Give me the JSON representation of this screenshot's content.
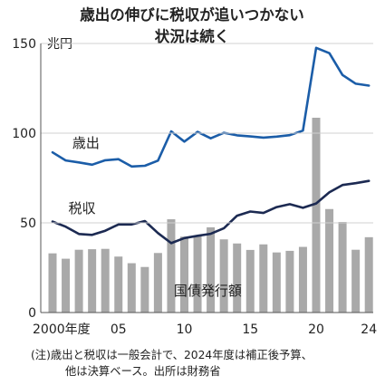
{
  "chart_data": {
    "type": "bar+line",
    "title_lines": [
      "歳出の伸びに税収が追いつかない",
      "状況は続く"
    ],
    "unit": "兆円",
    "y_ticks": [
      "150",
      "100",
      "50",
      "0"
    ],
    "y_tick_values": [
      150,
      100,
      50,
      0
    ],
    "ylim": [
      0,
      150
    ],
    "x_tick_labels": [
      "2000年度",
      "05",
      "10",
      "15",
      "20",
      "24"
    ],
    "x_tick_years": [
      2000,
      2005,
      2010,
      2015,
      2020,
      2024
    ],
    "years": [
      2000,
      2001,
      2002,
      2003,
      2004,
      2005,
      2006,
      2007,
      2008,
      2009,
      2010,
      2011,
      2012,
      2013,
      2014,
      2015,
      2016,
      2017,
      2018,
      2019,
      2020,
      2021,
      2022,
      2023,
      2024
    ],
    "series": [
      {
        "name": "歳出",
        "kind": "line",
        "color": "#1b5da8",
        "values": [
          89.3,
          84.8,
          83.7,
          82.4,
          84.9,
          85.5,
          81.4,
          81.8,
          84.7,
          101.0,
          95.3,
          100.7,
          97.1,
          100.2,
          98.8,
          98.2,
          97.5,
          98.1,
          98.9,
          101.4,
          147.6,
          144.6,
          132.4,
          127.6,
          126.5
        ]
      },
      {
        "name": "税収",
        "kind": "line",
        "color": "#1c2a52",
        "values": [
          50.7,
          47.9,
          43.8,
          43.3,
          45.6,
          49.1,
          49.1,
          51.0,
          44.3,
          38.7,
          41.5,
          42.8,
          43.9,
          47.0,
          54.0,
          56.3,
          55.5,
          58.8,
          60.4,
          58.4,
          60.8,
          67.0,
          71.1,
          72.1,
          73.4
        ]
      },
      {
        "name": "国債発行額",
        "kind": "bar",
        "color": "#a9a9a9",
        "values": [
          33.0,
          30.0,
          35.0,
          35.3,
          35.5,
          31.2,
          27.5,
          25.4,
          33.2,
          52.0,
          42.3,
          42.8,
          47.5,
          40.8,
          38.5,
          34.9,
          38.0,
          33.5,
          34.4,
          36.6,
          108.6,
          57.7,
          50.5,
          35.0,
          42.0
        ]
      }
    ],
    "notes": [
      "(注)歳出と税収は一般会計で、2024年度は補正後予算、",
      "他は決算ベース。出所は財務省"
    ]
  }
}
